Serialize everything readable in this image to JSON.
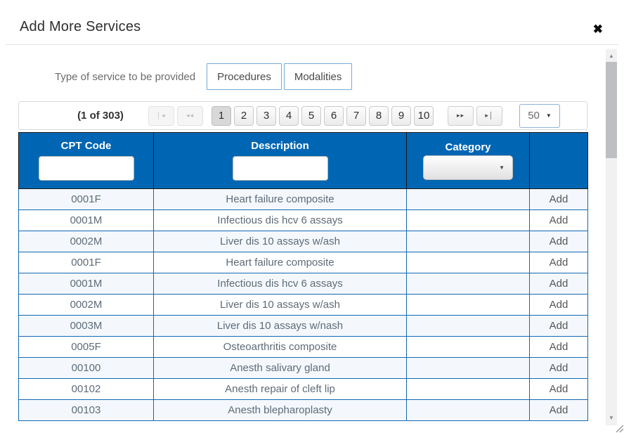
{
  "modal": {
    "title": "Add More Services",
    "close_icon": "✖"
  },
  "service_type": {
    "label": "Type of service to be provided",
    "buttons": [
      {
        "label": "Procedures"
      },
      {
        "label": "Modalities"
      }
    ]
  },
  "paginator": {
    "status": "(1 of 303)",
    "pages": [
      "1",
      "2",
      "3",
      "4",
      "5",
      "6",
      "7",
      "8",
      "9",
      "10"
    ],
    "active_page": "1",
    "rows_per_page": "50",
    "icons": {
      "first": "│◂",
      "prev": "◂◂",
      "next": "▸▸",
      "last": "▸│",
      "caret": "▼"
    }
  },
  "table": {
    "columns": [
      {
        "header": "CPT Code"
      },
      {
        "header": "Description"
      },
      {
        "header": "Category"
      },
      {
        "header": ""
      }
    ],
    "filters": {
      "cpt_value": "",
      "description_value": "",
      "category_selected": ""
    },
    "action_label": "Add",
    "rows": [
      {
        "cpt": "0001F",
        "description": "Heart failure composite",
        "category": ""
      },
      {
        "cpt": "0001M",
        "description": "Infectious dis hcv 6 assays",
        "category": ""
      },
      {
        "cpt": "0002M",
        "description": "Liver dis 10 assays w/ash",
        "category": ""
      },
      {
        "cpt": "0001F",
        "description": "Heart failure composite",
        "category": ""
      },
      {
        "cpt": "0001M",
        "description": "Infectious dis hcv 6 assays",
        "category": ""
      },
      {
        "cpt": "0002M",
        "description": "Liver dis 10 assays w/ash",
        "category": ""
      },
      {
        "cpt": "0003M",
        "description": "Liver dis 10 assays w/nash",
        "category": ""
      },
      {
        "cpt": "0005F",
        "description": "Osteoarthritis composite",
        "category": ""
      },
      {
        "cpt": "00100",
        "description": "Anesth salivary gland",
        "category": ""
      },
      {
        "cpt": "00102",
        "description": "Anesth repair of cleft lip",
        "category": ""
      },
      {
        "cpt": "00103",
        "description": "Anesth blepharoplasty",
        "category": ""
      }
    ]
  },
  "scrollbar": {
    "up_icon": "▲",
    "down_icon": "▼"
  },
  "colors": {
    "header_bg": "#0066b3",
    "row_border": "#1268b3",
    "row_alt_bg": "#f4f8fc",
    "accent_border": "#76abd9",
    "divider": "#e6e6e6"
  }
}
